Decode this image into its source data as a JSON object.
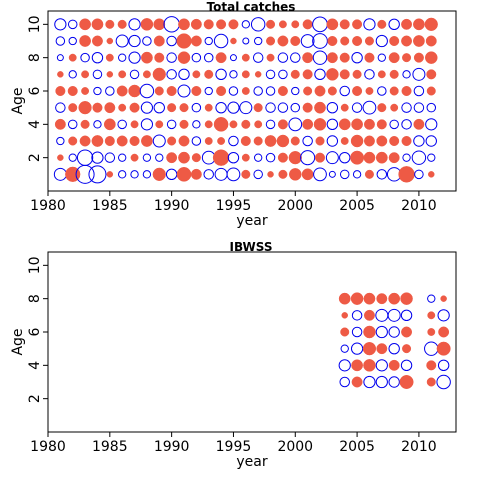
{
  "colors": {
    "negative": "#0000ee",
    "positive": "#ee5a45",
    "frame": "#000000"
  },
  "chart_data": [
    {
      "type": "scatter",
      "subtype": "bubble-residual",
      "title": "Total catches",
      "xlabel": "year",
      "ylabel": "Age",
      "xlim": [
        1980,
        2013
      ],
      "ylim": [
        0,
        10.8
      ],
      "xticks": [
        1980,
        1985,
        1990,
        1995,
        2000,
        2005,
        2010
      ],
      "yticks": [
        2,
        4,
        6,
        8,
        10
      ],
      "years": [
        1981,
        1982,
        1983,
        1984,
        1985,
        1986,
        1987,
        1988,
        1989,
        1990,
        1991,
        1992,
        1993,
        1994,
        1995,
        1996,
        1997,
        1998,
        1999,
        2000,
        2001,
        2002,
        2003,
        2004,
        2005,
        2006,
        2007,
        2008,
        2009,
        2010,
        2011
      ],
      "ages": [
        1,
        2,
        3,
        4,
        5,
        6,
        7,
        8,
        9,
        10
      ],
      "residuals": [
        [
          -0.8,
          1.2,
          -1.8,
          -1.6,
          0.2,
          -0.3,
          -0.3,
          -0.3,
          0.9,
          -0.6,
          1.1,
          0.6,
          -0.5,
          -0.8,
          -0.9,
          0.4,
          -0.4,
          0.2,
          0.4,
          0.8,
          0.7,
          -0.9,
          -0.2,
          -0.4,
          -0.3,
          0.4,
          -0.5,
          -1.0,
          1.4,
          -0.4,
          0.2
        ],
        [
          0.2,
          -0.3,
          -1.3,
          -0.7,
          -0.5,
          -0.3,
          0.3,
          -0.3,
          -0.3,
          0.6,
          0.7,
          0.4,
          -0.9,
          1.4,
          -0.6,
          0.3,
          -0.3,
          -0.4,
          0.5,
          0.9,
          -1.1,
          0.5,
          -0.8,
          -0.6,
          1.0,
          0.7,
          0.7,
          0.6,
          -0.3,
          -1.0,
          -0.3
        ],
        [
          -0.3,
          0.4,
          0.6,
          0.7,
          0.5,
          0.6,
          0.5,
          0.7,
          -0.8,
          0.4,
          0.6,
          -0.4,
          0.3,
          0.3,
          -0.5,
          0.5,
          0.4,
          0.7,
          0.8,
          0.4,
          -0.5,
          0.4,
          -0.6,
          0.3,
          0.8,
          0.6,
          0.6,
          0.5,
          0.5,
          -0.6,
          -0.6
        ],
        [
          0.6,
          -0.4,
          0.4,
          -0.3,
          0.7,
          -0.4,
          0.3,
          -0.7,
          0.3,
          -0.4,
          0.4,
          -0.3,
          0.3,
          1.1,
          0.3,
          0.4,
          0.3,
          -0.4,
          0.5,
          -0.9,
          0.6,
          0.8,
          -0.6,
          0.7,
          0.7,
          0.6,
          0.5,
          -0.4,
          -0.5,
          0.6,
          -0.7
        ],
        [
          -0.5,
          0.4,
          0.9,
          0.5,
          0.6,
          0.3,
          0.5,
          -0.7,
          -0.6,
          0.4,
          0.4,
          -0.4,
          0.3,
          -0.6,
          -0.7,
          -0.8,
          0.4,
          -0.5,
          -0.5,
          -0.4,
          0.5,
          0.7,
          -0.6,
          0.3,
          -0.5,
          -0.9,
          0.4,
          0.3,
          -0.5,
          -0.5,
          -0.4
        ],
        [
          0.5,
          0.5,
          0.3,
          -0.3,
          -0.4,
          0.6,
          0.8,
          -1.0,
          0.4,
          0.5,
          -0.8,
          0.5,
          -0.3,
          0.5,
          -0.4,
          0.3,
          -0.4,
          -0.4,
          0.5,
          -0.3,
          0.4,
          0.6,
          0.4,
          -0.5,
          0.5,
          0.3,
          -0.4,
          0.4,
          0.5,
          -0.5,
          0.4
        ],
        [
          0.2,
          -0.3,
          0.3,
          -0.4,
          0.2,
          0.3,
          -0.4,
          0.3,
          0.9,
          -0.5,
          -0.6,
          0.3,
          0.4,
          -0.6,
          -0.3,
          0.3,
          0.2,
          -0.4,
          -0.4,
          0.4,
          0.5,
          -0.6,
          0.8,
          0.5,
          0.4,
          -0.5,
          0.3,
          0.4,
          -0.3,
          -0.8,
          0.5
        ],
        [
          -0.2,
          0.3,
          -0.4,
          -0.6,
          0.3,
          -0.3,
          -0.7,
          0.7,
          0.5,
          -0.5,
          0.8,
          -0.4,
          -0.4,
          0.6,
          -0.2,
          0.3,
          -0.5,
          0.3,
          -0.5,
          -0.5,
          0.6,
          -1.0,
          0.6,
          0.5,
          -0.6,
          0.5,
          -0.3,
          0.6,
          0.4,
          0.5,
          0.8
        ],
        [
          -0.4,
          -0.3,
          0.7,
          0.6,
          0.2,
          -0.8,
          -0.7,
          -0.4,
          0.6,
          -0.5,
          1.2,
          0.6,
          -0.3,
          -1.0,
          0.2,
          -0.2,
          -0.3,
          0.4,
          0.6,
          0.5,
          -0.9,
          -1.2,
          0.5,
          0.4,
          0.5,
          0.4,
          -0.7,
          0.5,
          0.6,
          0.7,
          0.6
        ],
        [
          -0.7,
          -0.4,
          0.7,
          0.7,
          0.4,
          0.4,
          -0.7,
          0.8,
          0.7,
          -1.3,
          0.7,
          0.6,
          0.5,
          0.5,
          0.5,
          -0.3,
          -1.0,
          0.4,
          0.3,
          0.3,
          0.5,
          -1.2,
          0.7,
          0.5,
          0.5,
          -0.7,
          0.4,
          -0.6,
          0.6,
          0.7,
          0.9
        ]
      ]
    },
    {
      "type": "scatter",
      "subtype": "bubble-residual",
      "title": "IBWSS",
      "xlabel": "year",
      "ylabel": "Age",
      "xlim": [
        1980,
        2013
      ],
      "ylim": [
        0,
        10.8
      ],
      "xticks": [
        1980,
        1985,
        1990,
        1995,
        2000,
        2005,
        2010
      ],
      "yticks": [
        2,
        4,
        6,
        8,
        10
      ],
      "years": [
        2004,
        2005,
        2006,
        2007,
        2008,
        2009,
        2011,
        2012
      ],
      "ages": [
        3,
        4,
        5,
        6,
        7,
        8
      ],
      "residuals": [
        [
          -0.5,
          0.6,
          -0.7,
          -0.7,
          -0.6,
          1.0,
          0.4,
          -1.0
        ],
        [
          -0.7,
          0.7,
          0.8,
          -0.7,
          0.6,
          -0.6,
          0.5,
          -0.6
        ],
        [
          -0.3,
          -0.7,
          0.9,
          0.6,
          -0.6,
          0.4,
          -1.0,
          1.0
        ],
        [
          0.4,
          -0.5,
          0.8,
          -0.7,
          -0.6,
          0.6,
          0.3,
          0.6
        ],
        [
          0.2,
          -0.5,
          0.6,
          -0.8,
          -0.8,
          -0.6,
          0.3,
          -0.7
        ],
        [
          0.7,
          0.8,
          0.7,
          0.6,
          0.7,
          0.8,
          -0.3,
          0.2
        ]
      ]
    }
  ]
}
